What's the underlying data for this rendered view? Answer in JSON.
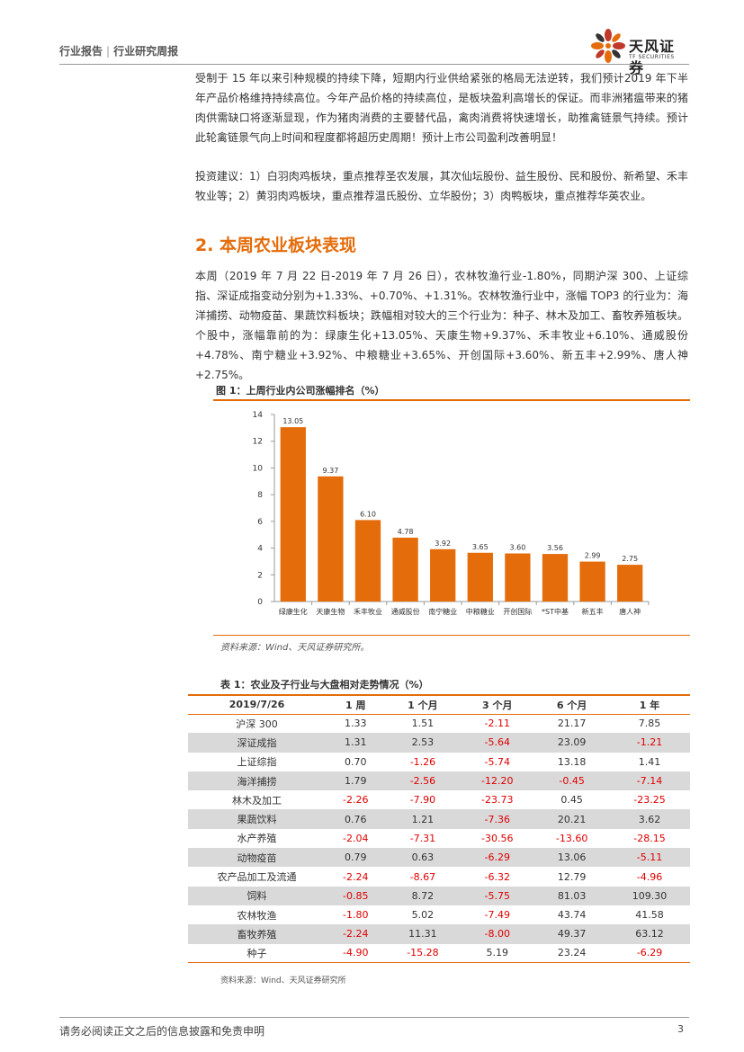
{
  "header": {
    "left": "行业报告",
    "right": "行业研究周报"
  },
  "logo": {
    "cn": "天风证券",
    "en": "TF SECURITIES"
  },
  "paragraphs": {
    "p1": "受制于 15 年以来引种规模的持续下降，短期内行业供给紧张的格局无法逆转，我们预计2019 年下半年产品价格维持持续高位。今年产品价格的持续高位，是板块盈利高增长的保证。而非洲猪瘟带来的猪肉供需缺口将逐渐显现，作为猪肉消费的主要替代品，禽肉消费将快速增长，助推禽链景气持续。预计此轮禽链景气向上时间和程度都将超历史周期！预计上市公司盈利改善明显！",
    "p2": "投资建议：1）白羽肉鸡板块，重点推荐圣农发展，其次仙坛股份、益生股份、民和股份、新希望、禾丰牧业等；2）黄羽肉鸡板块，重点推荐温氏股份、立华股份；3）肉鸭板块，重点推荐华英农业。",
    "section_title": "2. 本周农业板块表现",
    "p3": "本周（2019 年 7 月 22 日-2019 年 7 月 26 日），农林牧渔行业-1.80%，同期沪深 300、上证综指、深证成指变动分别为+1.33%、+0.70%、+1.31%。农林牧渔行业中，涨幅 TOP3 的行业为：海洋捕捞、动物疫苗、果蔬饮料板块；跌幅相对较大的三个行业为：种子、林木及加工、畜牧养殖板块。个股中，涨幅靠前的为：绿康生化+13.05%、天康生物+9.37%、禾丰牧业+6.10%、通威股份+4.78%、南宁糖业+3.92%、中粮糖业+3.65%、开创国际+3.60%、新五丰+2.99%、唐人神+2.75%。"
  },
  "figure": {
    "title": "图 1：上周行业内公司涨幅排名（%）",
    "source": "资料来源：Wind、天风证券研究所。"
  },
  "chart_data": {
    "type": "bar",
    "categories": [
      "绿康生化",
      "天康生物",
      "禾丰牧业",
      "通威股份",
      "南宁糖业",
      "中粮糖业",
      "开创国际",
      "*ST中基",
      "新五丰",
      "唐人神"
    ],
    "values": [
      13.05,
      9.37,
      6.1,
      4.78,
      3.92,
      3.65,
      3.6,
      3.56,
      2.99,
      2.75
    ],
    "value_labels": [
      "13.05",
      "9.37",
      "6.10",
      "4.78",
      "3.92",
      "3.65",
      "3.60",
      "3.56",
      "2.99",
      "2.75"
    ],
    "yticks": [
      "0",
      "2",
      "4",
      "6",
      "8",
      "10",
      "12",
      "14"
    ],
    "ylim": [
      0,
      14
    ],
    "color": "#e46c0a",
    "grid": false
  },
  "table": {
    "title": "表 1：农业及子行业与大盘相对走势情况（%）",
    "headers": [
      "2019/7/26",
      "1 周",
      "1 个月",
      "3 个月",
      "6 个月",
      "1 年"
    ],
    "rows": [
      [
        "沪深 300",
        "1.33",
        "1.51",
        "-2.11",
        "21.17",
        "7.85"
      ],
      [
        "深证成指",
        "1.31",
        "2.53",
        "-5.64",
        "23.09",
        "-1.21"
      ],
      [
        "上证综指",
        "0.70",
        "-1.26",
        "-5.74",
        "13.18",
        "1.41"
      ],
      [
        "海洋捕捞",
        "1.79",
        "-2.56",
        "-12.20",
        "-0.45",
        "-7.14"
      ],
      [
        "林木及加工",
        "-2.26",
        "-7.90",
        "-23.73",
        "0.45",
        "-23.25"
      ],
      [
        "果蔬饮料",
        "0.76",
        "1.21",
        "-7.36",
        "20.21",
        "3.62"
      ],
      [
        "水产养殖",
        "-2.04",
        "-7.31",
        "-30.56",
        "-13.60",
        "-28.15"
      ],
      [
        "动物疫苗",
        "0.79",
        "0.63",
        "-6.29",
        "13.06",
        "-5.11"
      ],
      [
        "农产品加工及流通",
        "-2.24",
        "-8.67",
        "-6.32",
        "12.79",
        "-4.96"
      ],
      [
        "饲料",
        "-0.85",
        "8.72",
        "-5.75",
        "81.03",
        "109.30"
      ],
      [
        "农林牧渔",
        "-1.80",
        "5.02",
        "-7.49",
        "43.74",
        "41.58"
      ],
      [
        "畜牧养殖",
        "-2.24",
        "11.31",
        "-8.00",
        "49.37",
        "63.12"
      ],
      [
        "种子",
        "-4.90",
        "-15.28",
        "5.19",
        "23.24",
        "-6.29"
      ]
    ],
    "source": "资料来源：Wind、天风证券研究所"
  },
  "footer": {
    "disclaimer": "请务必阅读正文之后的信息披露和免责申明",
    "page": "3"
  }
}
